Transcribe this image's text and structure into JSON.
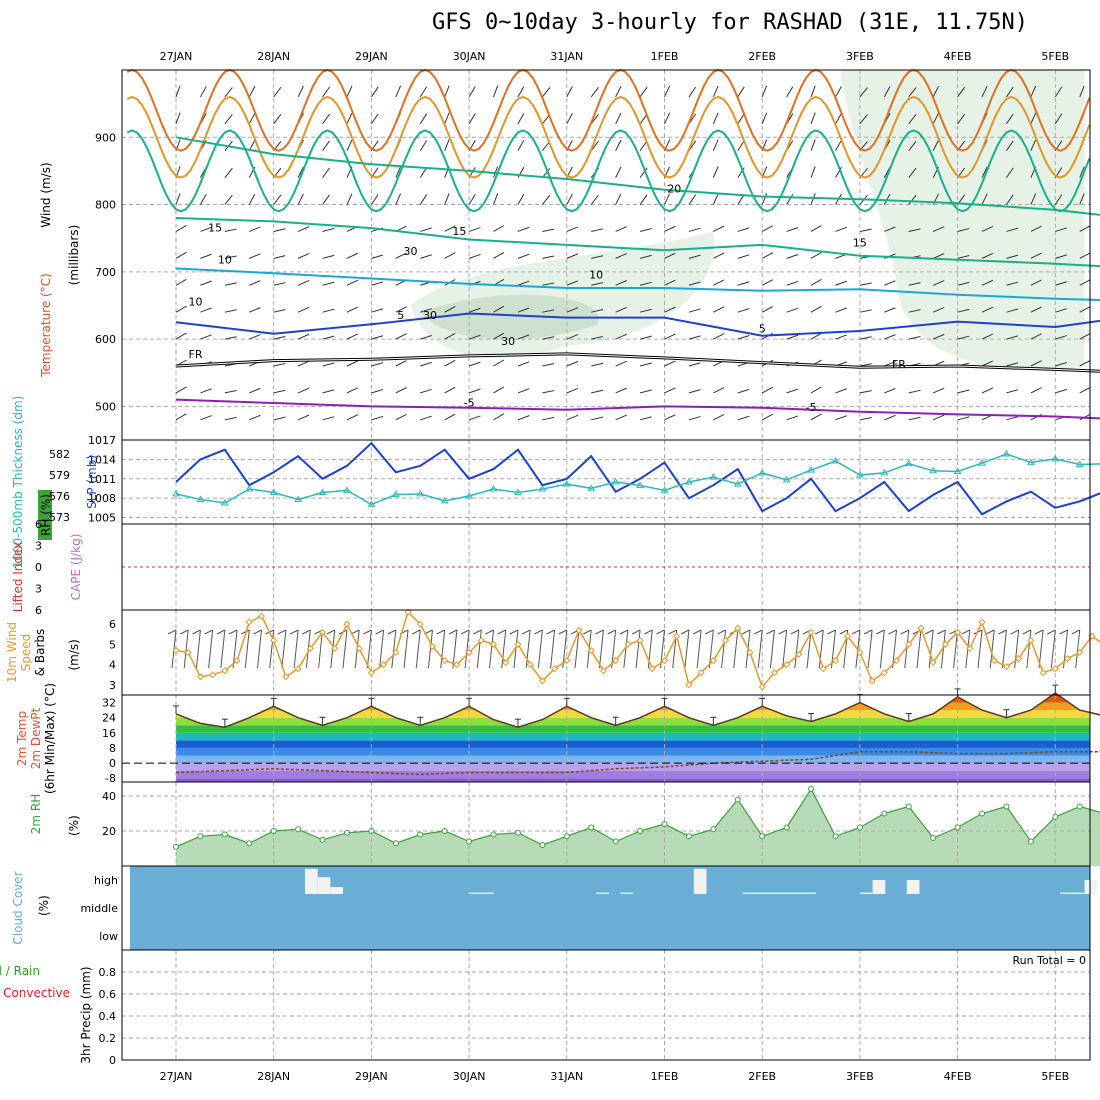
{
  "title": "GFS 0~10day 3-hourly for RASHAD (31E, 11.75N)",
  "colors": {
    "frame": "#000000",
    "grid": "#aaaaaa",
    "purple": "#8a1fb5",
    "blue": "#1f3fd0",
    "cyan": "#1aa7d8",
    "teal": "#16b08a",
    "orange": "#e0962a",
    "slp": "#1c3fcf",
    "thickness": "#2bb8b8",
    "wind10m": "#e39a2b",
    "rh2m": "#3aa13a",
    "cloud": "#6aaed6",
    "precip_total": "#27a327",
    "precip_conv": "#e02020",
    "cape": "#c070c0",
    "li": "#e03030"
  },
  "chart_data": [
    {
      "id": "upper-air",
      "type": "contour",
      "xaxis": {
        "ticks": [
          "27JAN",
          "28JAN",
          "29JAN",
          "30JAN",
          "31JAN",
          "1FEB",
          "2FEB",
          "3FEB",
          "4FEB",
          "5FEB"
        ]
      },
      "ylabel_parts": [
        "Wind (m/s)",
        "Temperature (°C)",
        "RH (%)"
      ],
      "ylabel_unit": "(millibars)",
      "ylim": [
        450,
        1000
      ],
      "yticks": [
        500,
        600,
        700,
        800,
        900
      ],
      "contour_labels": [
        {
          "text": "-5",
          "series": "purple"
        },
        {
          "text": "-5",
          "series": "purple"
        },
        {
          "text": "FR",
          "series": "freezing"
        },
        {
          "text": "FR",
          "series": "freezing"
        },
        {
          "text": "5",
          "series": "blue"
        },
        {
          "text": "5",
          "series": "blue"
        },
        {
          "text": "10",
          "series": "cyan"
        },
        {
          "text": "15",
          "series": "teal"
        },
        {
          "text": "15",
          "series": "teal"
        },
        {
          "text": "15",
          "series": "teal"
        },
        {
          "text": "20",
          "series": "teal"
        },
        {
          "text": "10",
          "series": "rh"
        },
        {
          "text": "10",
          "series": "rh"
        },
        {
          "text": "30",
          "series": "rh"
        },
        {
          "text": "30",
          "series": "rh"
        },
        {
          "text": "30",
          "series": "rh"
        }
      ],
      "series": [
        {
          "name": "-5",
          "color": "purple",
          "x": [
            0,
            1,
            2,
            3,
            4,
            5,
            6,
            7,
            8,
            9,
            9.5
          ],
          "y": [
            510,
            505,
            500,
            498,
            495,
            500,
            498,
            492,
            488,
            485,
            482
          ]
        },
        {
          "name": "FR",
          "color": "freezing",
          "x": [
            0,
            1,
            2,
            3,
            4,
            5,
            6,
            7,
            8,
            9,
            9.5
          ],
          "y": [
            560,
            568,
            570,
            575,
            578,
            572,
            565,
            558,
            560,
            555,
            552
          ]
        },
        {
          "name": "5",
          "color": "blue",
          "x": [
            0,
            1,
            2,
            3,
            4,
            5,
            6,
            7,
            8,
            9,
            9.5
          ],
          "y": [
            625,
            608,
            622,
            638,
            632,
            632,
            605,
            612,
            626,
            618,
            628
          ]
        },
        {
          "name": "10",
          "color": "cyan",
          "x": [
            0,
            1,
            2,
            3,
            4,
            5,
            6,
            7,
            8,
            9,
            9.5
          ],
          "y": [
            705,
            698,
            690,
            682,
            676,
            676,
            672,
            674,
            666,
            660,
            658
          ]
        },
        {
          "name": "15",
          "color": "teal",
          "x": [
            0,
            1,
            2,
            3,
            4,
            5,
            6,
            7,
            8,
            9,
            9.5
          ],
          "y": [
            780,
            775,
            765,
            748,
            740,
            732,
            740,
            724,
            718,
            712,
            708
          ]
        },
        {
          "name": "20",
          "color": "teal",
          "x": [
            0,
            1,
            2,
            3,
            4,
            5,
            6,
            7,
            8,
            9,
            9.5
          ],
          "y": [
            900,
            875,
            860,
            850,
            838,
            822,
            812,
            808,
            802,
            792,
            784
          ]
        }
      ]
    },
    {
      "id": "slp-thickness",
      "type": "line",
      "ylabel_left": "1000-500mb Thickness (dm)",
      "ylabel_right": "SLP (mb)",
      "yticks_left": [
        573,
        576,
        579,
        582
      ],
      "yticks_right": [
        1005,
        1008,
        1011,
        1014,
        1017
      ],
      "ylim_right": [
        1004,
        1017
      ],
      "series": [
        {
          "name": "SLP",
          "x": [
            0,
            0.25,
            0.5,
            0.75,
            1,
            1.25,
            1.5,
            1.75,
            2,
            2.25,
            2.5,
            2.75,
            3,
            3.25,
            3.5,
            3.75,
            4,
            4.25,
            4.5,
            4.75,
            5,
            5.25,
            5.5,
            5.75,
            6,
            6.25,
            6.5,
            6.75,
            7,
            7.25,
            7.5,
            7.75,
            8,
            8.25,
            8.5,
            8.75,
            9,
            9.25,
            9.5
          ],
          "y": [
            1010.5,
            1014,
            1015.5,
            1010,
            1012,
            1014.5,
            1011,
            1013,
            1016.5,
            1012,
            1013,
            1015.5,
            1011,
            1012.5,
            1015.5,
            1010,
            1011,
            1014.5,
            1009,
            1011,
            1013.5,
            1008,
            1010,
            1012.5,
            1006,
            1008,
            1011,
            1006,
            1008,
            1010.5,
            1006,
            1008.5,
            1010.5,
            1005.5,
            1007.5,
            1009,
            1006.5,
            1007.5,
            1009
          ]
        },
        {
          "name": "Thickness",
          "x": [
            0,
            0.25,
            0.5,
            0.75,
            1,
            1.25,
            1.5,
            1.75,
            2,
            2.25,
            2.5,
            2.75,
            3,
            3.25,
            3.5,
            3.75,
            4,
            4.25,
            4.5,
            4.75,
            5,
            5.25,
            5.5,
            5.75,
            6,
            6.25,
            6.5,
            6.75,
            7,
            7.25,
            7.5,
            7.75,
            8,
            8.25,
            8.5,
            8.75,
            9,
            9.25,
            9.5
          ],
          "y": [
            576.3,
            575.5,
            575,
            577,
            576.5,
            575.5,
            576.5,
            576.8,
            574.8,
            576.2,
            576.3,
            575.3,
            576,
            577,
            576.5,
            577,
            577.7,
            577.1,
            578,
            577.5,
            576.8,
            578,
            578.7,
            577.7,
            579.3,
            578.3,
            579.7,
            581,
            579,
            579.3,
            580.6,
            579.6,
            579.5,
            580.7,
            582,
            580.8,
            581.3,
            580.5,
            580.6
          ]
        }
      ]
    },
    {
      "id": "cape-li",
      "type": "line",
      "ylabel_left": "Lifted Index",
      "ylabel_right": "CAPE (J/kg)",
      "yticks": [
        -6,
        -3,
        0,
        3,
        6
      ],
      "yticklabels": [
        "6",
        "3",
        "0",
        "3",
        "6"
      ],
      "ylim": [
        -6,
        6
      ],
      "zero_line": true,
      "series": []
    },
    {
      "id": "wind10m",
      "type": "line",
      "ylabel": "10m Wind Speed & Barbs (m/s)",
      "ylim": [
        2.5,
        6.7
      ],
      "yticks": [
        3,
        4,
        5,
        6
      ],
      "series": [
        {
          "name": "Speed",
          "x": [
            0,
            0.125,
            0.25,
            0.375,
            0.5,
            0.625,
            0.75,
            0.875,
            1,
            1.125,
            1.25,
            1.375,
            1.5,
            1.625,
            1.75,
            1.875,
            2,
            2.125,
            2.25,
            2.375,
            2.5,
            2.625,
            2.75,
            2.875,
            3,
            3.125,
            3.25,
            3.375,
            3.5,
            3.625,
            3.75,
            3.875,
            4,
            4.125,
            4.25,
            4.375,
            4.5,
            4.625,
            4.75,
            4.875,
            5,
            5.125,
            5.25,
            5.375,
            5.5,
            5.625,
            5.75,
            5.875,
            6,
            6.125,
            6.25,
            6.375,
            6.5,
            6.625,
            6.75,
            6.875,
            7,
            7.125,
            7.25,
            7.375,
            7.5,
            7.625,
            7.75,
            7.875,
            8,
            8.125,
            8.25,
            8.375,
            8.5,
            8.625,
            8.75,
            8.875,
            9,
            9.125,
            9.25,
            9.375,
            9.5
          ],
          "y": [
            4.7,
            4.6,
            3.4,
            3.5,
            3.7,
            4.2,
            6.1,
            6.4,
            5.2,
            3.4,
            3.8,
            4.8,
            5.6,
            4.8,
            6.0,
            4.8,
            3.6,
            4.0,
            4.6,
            6.6,
            6.0,
            4.9,
            4.2,
            4.0,
            4.6,
            5.2,
            5.0,
            4.1,
            5.0,
            4.0,
            3.2,
            3.8,
            4.2,
            5.7,
            4.7,
            3.7,
            4.2,
            5.0,
            5.2,
            3.8,
            4.2,
            5.4,
            3.0,
            3.6,
            4.2,
            5.2,
            5.8,
            4.6,
            2.9,
            3.6,
            4.0,
            4.5,
            5.6,
            3.8,
            4.2,
            5.4,
            4.6,
            3.2,
            3.6,
            4.2,
            5.0,
            5.8,
            4.1,
            5.0,
            5.6,
            4.8,
            6.1,
            4.2,
            3.9,
            4.3,
            5.2,
            3.6,
            3.8,
            4.3,
            4.6,
            5.4,
            5.0
          ]
        }
      ]
    },
    {
      "id": "temp2m",
      "type": "area",
      "ylabel_lines": [
        "2m Temp",
        "2m DewPt",
        "(6hr Min/Max) (°C)"
      ],
      "ylim": [
        -10,
        36
      ],
      "yticks": [
        -8,
        0,
        8,
        16,
        24,
        32
      ],
      "series": [
        {
          "name": "2m Temp",
          "x": [
            0,
            0.25,
            0.5,
            0.75,
            1,
            1.25,
            1.5,
            1.75,
            2,
            2.25,
            2.5,
            2.75,
            3,
            3.25,
            3.5,
            3.75,
            4,
            4.25,
            4.5,
            4.75,
            5,
            5.25,
            5.5,
            5.75,
            6,
            6.25,
            6.5,
            6.75,
            7,
            7.25,
            7.5,
            7.75,
            8,
            8.25,
            8.5,
            8.75,
            9,
            9.25,
            9.5
          ],
          "y": [
            26,
            21,
            19,
            24,
            30,
            24,
            20,
            24,
            30,
            24,
            20,
            24,
            30,
            23,
            19,
            23,
            30,
            24,
            20,
            24,
            30,
            24,
            20,
            24,
            30,
            25,
            22,
            26,
            32,
            26,
            22,
            26,
            35,
            28,
            24,
            28,
            37,
            28,
            25
          ]
        },
        {
          "name": "2m DewPt",
          "x": [
            0,
            0.5,
            1,
            1.5,
            2,
            2.5,
            3,
            3.5,
            4,
            4.5,
            5,
            5.5,
            6,
            6.5,
            7,
            7.5,
            8,
            8.5,
            9,
            9.5
          ],
          "y": [
            -5,
            -4,
            -3,
            -4,
            -5,
            -6,
            -5,
            -5,
            -5,
            -3,
            -2,
            0,
            1,
            2,
            6,
            6,
            5,
            5,
            6,
            6
          ]
        }
      ]
    },
    {
      "id": "rh2m",
      "type": "area",
      "ylabel": "2m RH (%)",
      "ylim": [
        0,
        48
      ],
      "yticks": [
        20,
        40
      ],
      "series": [
        {
          "name": "2m RH",
          "x": [
            0,
            0.25,
            0.5,
            0.75,
            1,
            1.25,
            1.5,
            1.75,
            2,
            2.25,
            2.5,
            2.75,
            3,
            3.25,
            3.5,
            3.75,
            4,
            4.25,
            4.5,
            4.75,
            5,
            5.25,
            5.5,
            5.75,
            6,
            6.25,
            6.5,
            6.75,
            7,
            7.25,
            7.5,
            7.75,
            8,
            8.25,
            8.5,
            8.75,
            9,
            9.25,
            9.5
          ],
          "y": [
            11,
            17,
            18,
            13,
            20,
            21,
            15,
            19,
            20,
            13,
            18,
            20,
            14,
            18,
            19,
            12,
            17,
            22,
            14,
            20,
            24,
            17,
            21,
            38,
            17,
            22,
            44,
            17,
            22,
            30,
            34,
            16,
            22,
            30,
            34,
            14,
            28,
            34,
            30
          ]
        }
      ]
    },
    {
      "id": "cloud",
      "type": "bar",
      "ylabel": "Cloud Cover (%)",
      "categories": [
        "high",
        "middle",
        "low"
      ],
      "background": "cloud",
      "high_gaps": [
        {
          "x": 1.32,
          "w": 0.13,
          "h": 0.9
        },
        {
          "x": 1.45,
          "w": 0.13,
          "h": 0.6
        },
        {
          "x": 1.58,
          "w": 0.13,
          "h": 0.25
        },
        {
          "x": 3.0,
          "w": 0.25,
          "h": 0.05
        },
        {
          "x": 4.3,
          "w": 0.13,
          "h": 0.05
        },
        {
          "x": 4.55,
          "w": 0.13,
          "h": 0.05
        },
        {
          "x": 5.3,
          "w": 0.13,
          "h": 0.9
        },
        {
          "x": 5.8,
          "w": 0.75,
          "h": 0.05
        },
        {
          "x": 7.0,
          "w": 0.13,
          "h": 0.05
        },
        {
          "x": 7.13,
          "w": 0.13,
          "h": 0.5
        },
        {
          "x": 7.48,
          "w": 0.13,
          "h": 0.5
        },
        {
          "x": 9.05,
          "w": 0.25,
          "h": 0.05
        },
        {
          "x": 9.3,
          "w": 0.13,
          "h": 0.5
        }
      ]
    },
    {
      "id": "precip",
      "type": "bar",
      "ylabel_lines": [
        "Total / Rain",
        "Convective"
      ],
      "ylabel_unit": "3hr Precip (mm)",
      "ylim": [
        0,
        1
      ],
      "yticks": [
        0,
        0.2,
        0.4,
        0.6,
        0.8
      ],
      "values": [],
      "annotation": "Run Total = 0"
    }
  ]
}
